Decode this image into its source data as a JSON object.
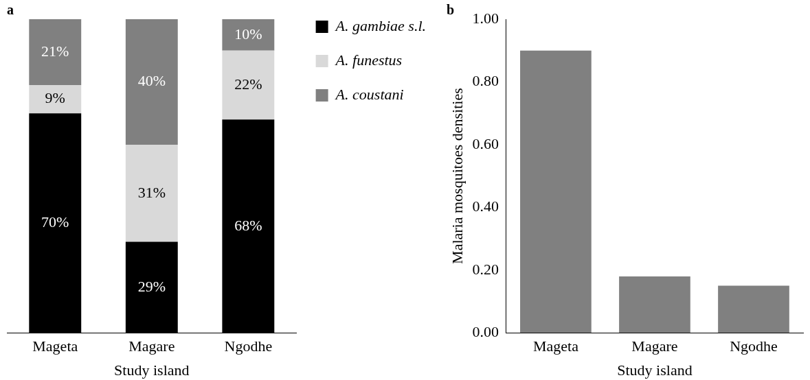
{
  "chart_data": [
    {
      "type": "bar",
      "title": "a",
      "xlabel": "Study island",
      "categories": [
        "Mageta",
        "Magare",
        "Ngodhe"
      ],
      "stacked": true,
      "ylim": [
        0,
        100
      ],
      "tick_labels": "x",
      "grid": false,
      "legend": "right",
      "series": [
        {
          "name": "A. gambiae s.l.",
          "color": "#000000",
          "values": [
            70,
            29,
            68
          ],
          "value_labels": [
            "70%",
            "29%",
            "68%"
          ]
        },
        {
          "name": "A. funestus",
          "color": "#d9d9d9",
          "values": [
            9,
            31,
            22
          ],
          "value_labels": [
            "9%",
            "31%",
            "22%"
          ]
        },
        {
          "name": "A. coustani",
          "color": "#808080",
          "values": [
            21,
            40,
            10
          ],
          "value_labels": [
            "21%",
            "40%",
            "10%"
          ]
        }
      ]
    },
    {
      "type": "bar",
      "title": "b",
      "xlabel": "Study island",
      "ylabel": "Malaria mosquitoes densities",
      "categories": [
        "Mageta",
        "Magare",
        "Ngodhe"
      ],
      "values": [
        0.9,
        0.18,
        0.15
      ],
      "color": "#808080",
      "ylim": [
        0,
        1
      ],
      "grid": false,
      "legend": false,
      "yticks": [
        {
          "value": 0,
          "label": "0.00"
        },
        {
          "value": 0.2,
          "label": "0.20"
        },
        {
          "value": 0.4,
          "label": "0.40"
        },
        {
          "value": 0.6,
          "label": "0.60"
        },
        {
          "value": 0.8,
          "label": "0.80"
        },
        {
          "value": 1,
          "label": "1.00"
        }
      ]
    }
  ]
}
